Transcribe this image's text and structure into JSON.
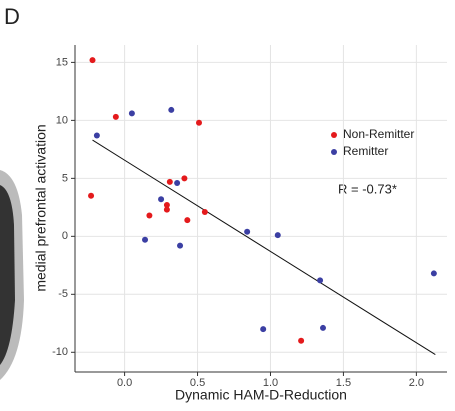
{
  "chart_data": {
    "type": "scatter",
    "panel_label": "D",
    "xlabel": "Dynamic HAM-D-Reduction",
    "ylabel": "medial prefrontal activation",
    "annotation": "R = -0.73*",
    "xlim": [
      -0.34,
      2.21
    ],
    "ylim": [
      -11.7,
      16.5
    ],
    "xticks": [
      {
        "value": 0,
        "label": "0.0"
      },
      0.5,
      {
        "value": 1,
        "label": "1.0"
      },
      1.5,
      {
        "value": 2,
        "label": "2.0"
      }
    ],
    "yticks": [
      -10,
      -5,
      0,
      5,
      10,
      15
    ],
    "grid": true,
    "legend": "right",
    "series": [
      {
        "name": "Non-Remitter",
        "color": "#e41a1c",
        "x": [
          -0.22,
          -0.06,
          0.51,
          -0.23,
          0.31,
          0.41,
          0.17,
          0.29,
          0.29,
          0.43,
          0.55,
          1.21
        ],
        "values": [
          15.2,
          10.3,
          9.8,
          3.5,
          4.7,
          5.0,
          1.8,
          2.7,
          2.3,
          1.4,
          2.1,
          -9.0
        ]
      },
      {
        "name": "Remitter",
        "color": "#3b3fa3",
        "x": [
          -0.19,
          0.05,
          0.32,
          0.36,
          0.25,
          0.14,
          0.38,
          0.84,
          1.05,
          1.34,
          1.36,
          2.12,
          0.95
        ],
        "values": [
          8.7,
          10.6,
          10.9,
          4.6,
          3.2,
          -0.3,
          -0.8,
          0.4,
          0.1,
          -3.8,
          -7.9,
          -3.2,
          -8.0
        ]
      }
    ],
    "fit_line": {
      "x": [
        -0.22,
        2.13
      ],
      "values": [
        8.3,
        -10.2
      ]
    }
  }
}
